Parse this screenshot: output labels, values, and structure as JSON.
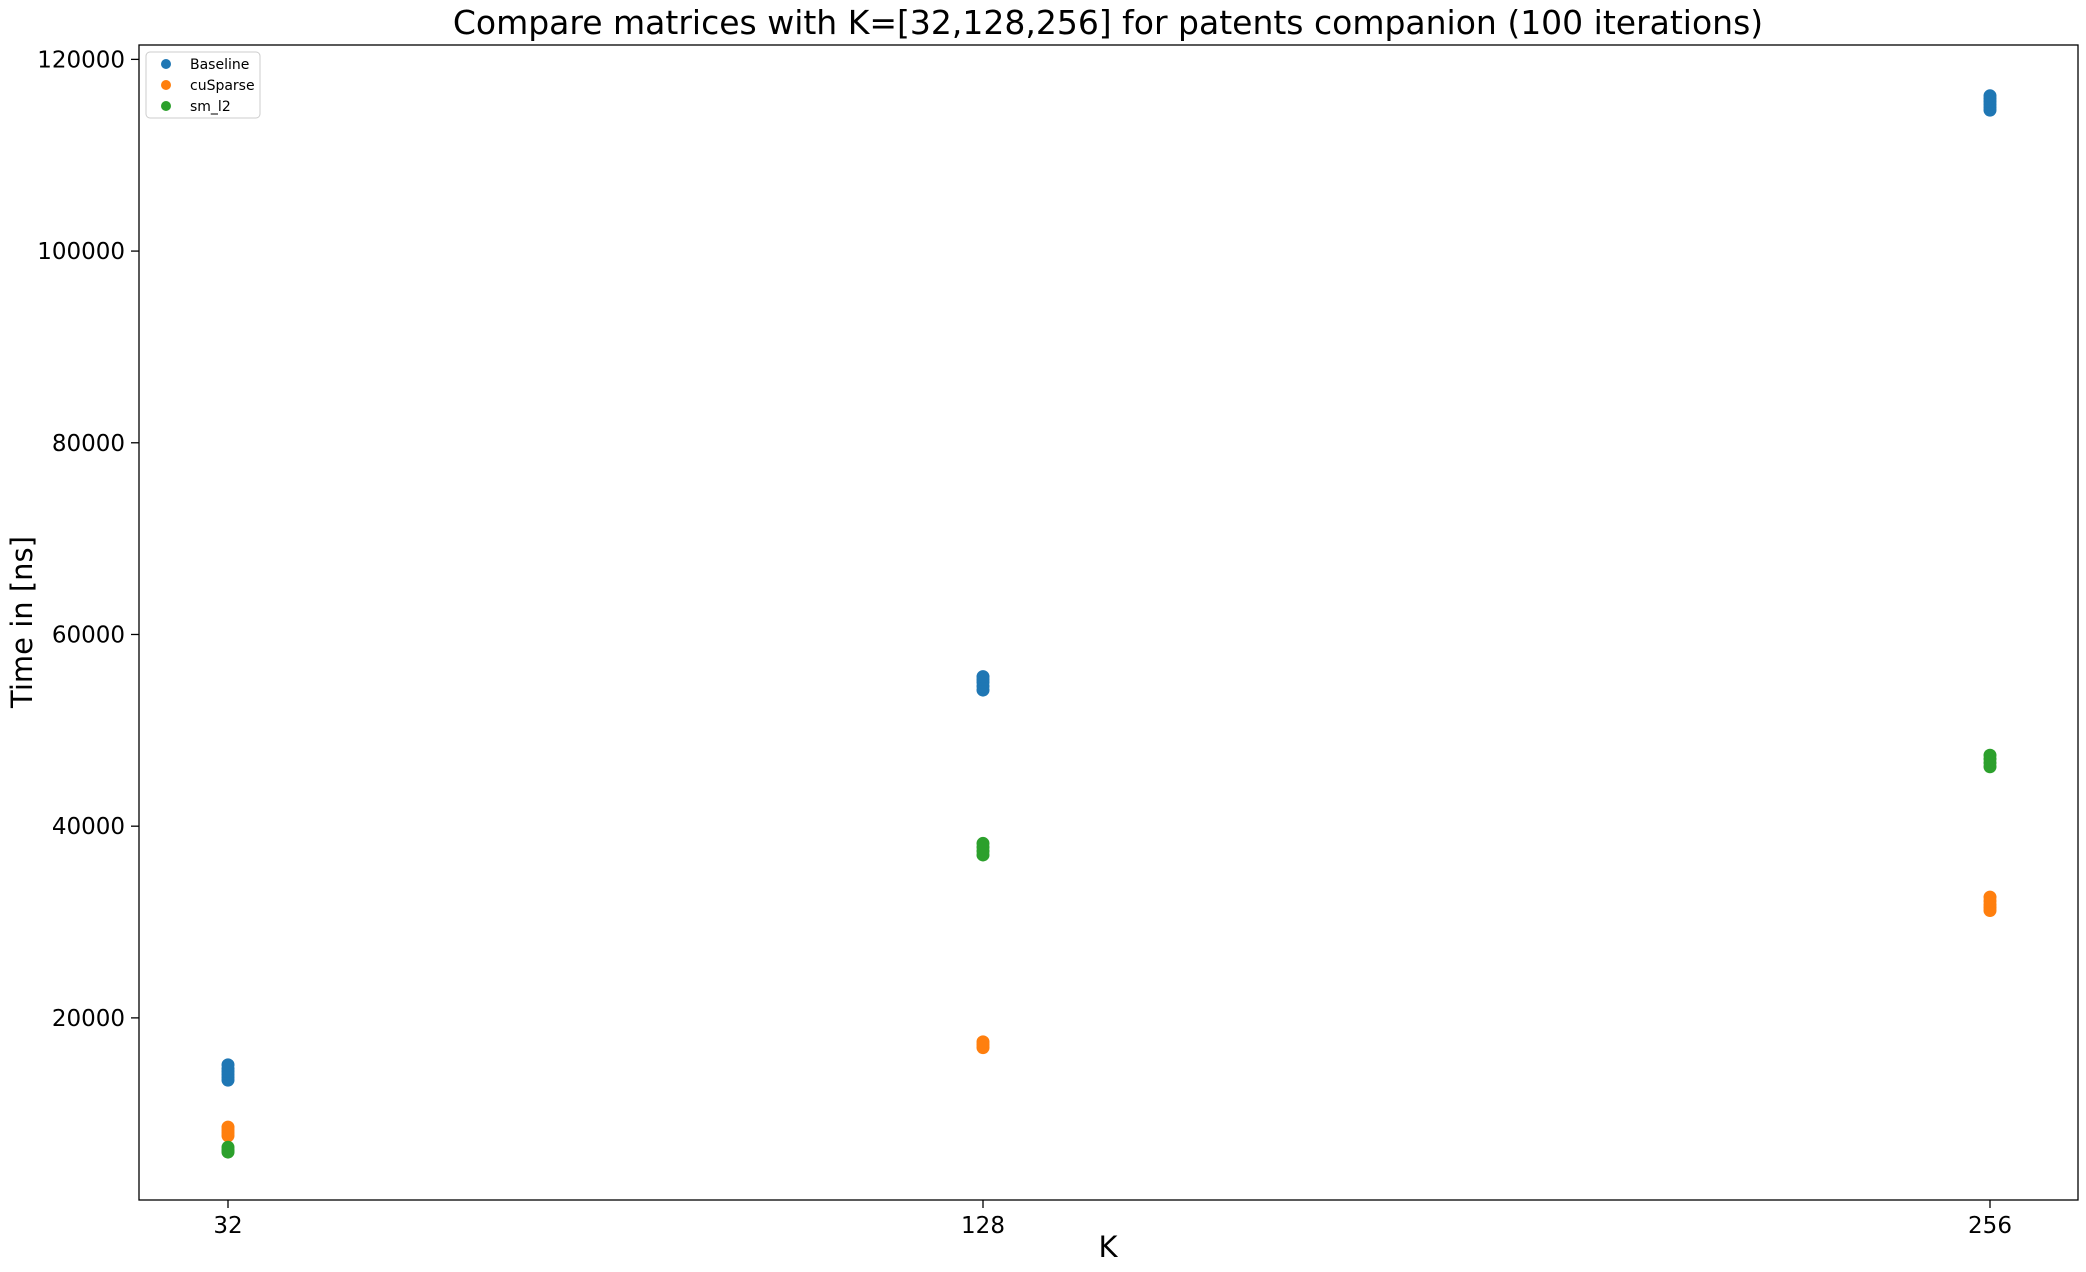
{
  "chart_data": {
    "type": "scatter",
    "title": "Compare matrices with K=[32,128,256] for patents companion (100 iterations)",
    "xlabel": "K",
    "ylabel": "Time in [ns]",
    "x_categories": [
      "32",
      "128",
      "256"
    ],
    "y_ticks": [
      20000,
      40000,
      60000,
      80000,
      100000,
      120000
    ],
    "y_tick_labels": [
      "20000",
      "40000",
      "60000",
      "80000",
      "100000",
      "120000"
    ],
    "ylim": [
      1000,
      121500
    ],
    "grid": false,
    "legend_position": "top-left",
    "series": [
      {
        "name": "Baseline",
        "color": "#1f77b4",
        "points": [
          {
            "x": "32",
            "y": 13500
          },
          {
            "x": "32",
            "y": 13800
          },
          {
            "x": "32",
            "y": 14100
          },
          {
            "x": "32",
            "y": 14400
          },
          {
            "x": "32",
            "y": 14700
          },
          {
            "x": "32",
            "y": 15100
          },
          {
            "x": "128",
            "y": 54200
          },
          {
            "x": "128",
            "y": 54600
          },
          {
            "x": "128",
            "y": 55000
          },
          {
            "x": "128",
            "y": 55300
          },
          {
            "x": "128",
            "y": 55600
          },
          {
            "x": "256",
            "y": 114700
          },
          {
            "x": "256",
            "y": 115000
          },
          {
            "x": "256",
            "y": 115300
          },
          {
            "x": "256",
            "y": 115600
          },
          {
            "x": "256",
            "y": 115900
          },
          {
            "x": "256",
            "y": 116200
          }
        ]
      },
      {
        "name": "cuSparse",
        "color": "#ff7f0e",
        "points": [
          {
            "x": "32",
            "y": 7700
          },
          {
            "x": "32",
            "y": 8000
          },
          {
            "x": "32",
            "y": 8300
          },
          {
            "x": "32",
            "y": 8600
          },
          {
            "x": "128",
            "y": 16900
          },
          {
            "x": "128",
            "y": 17200
          },
          {
            "x": "128",
            "y": 17500
          },
          {
            "x": "256",
            "y": 31200
          },
          {
            "x": "256",
            "y": 31500
          },
          {
            "x": "256",
            "y": 31800
          },
          {
            "x": "256",
            "y": 32200
          },
          {
            "x": "256",
            "y": 32600
          }
        ]
      },
      {
        "name": "sm_l2",
        "color": "#2ca02c",
        "points": [
          {
            "x": "32",
            "y": 6000
          },
          {
            "x": "32",
            "y": 6200
          },
          {
            "x": "32",
            "y": 6500
          },
          {
            "x": "128",
            "y": 37000
          },
          {
            "x": "128",
            "y": 37400
          },
          {
            "x": "128",
            "y": 37800
          },
          {
            "x": "128",
            "y": 38200
          },
          {
            "x": "256",
            "y": 46200
          },
          {
            "x": "256",
            "y": 46600
          },
          {
            "x": "256",
            "y": 47000
          },
          {
            "x": "256",
            "y": 47400
          }
        ]
      }
    ]
  }
}
